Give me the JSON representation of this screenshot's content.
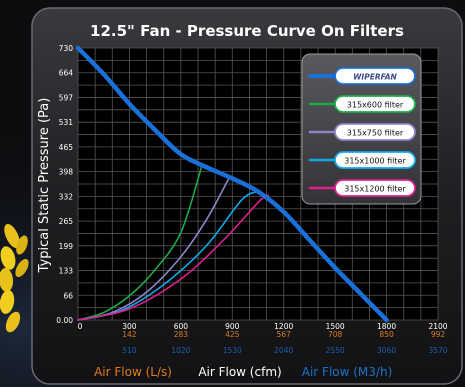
{
  "chart_data": {
    "type": "line",
    "title": "12.5\" Fan - Pressure Curve On Filters",
    "ylabel": "Typical Static Pressure  (Pa)",
    "xlabels": [
      {
        "text": "Air Flow (L/s)",
        "color": "#e07a1a"
      },
      {
        "text": "Air Flow (cfm)",
        "color": "#ffffff"
      },
      {
        "text": "Air Flow (M3/h)",
        "color": "#1a73c8"
      }
    ],
    "x_unit": "cfm",
    "xlim": [
      0,
      2100
    ],
    "ylim": [
      0,
      730
    ],
    "y_ticks": [
      "0.00",
      "66",
      "133",
      "199",
      "265",
      "332",
      "398",
      "465",
      "531",
      "597",
      "664",
      "730"
    ],
    "x_ticks_cfm": [
      "0",
      "300",
      "600",
      "900",
      "1200",
      "1500",
      "1800",
      "2100"
    ],
    "x_ticks_ls": [
      "142",
      "283",
      "425",
      "567",
      "708",
      "850",
      "992"
    ],
    "x_ticks_m3h": [
      "510",
      "1020",
      "1530",
      "2040",
      "2550",
      "3060",
      "3570"
    ],
    "grid": true,
    "legend_position": "top-right",
    "series": [
      {
        "name": "WIPERFAN",
        "color": "#1a6fd8",
        "points": [
          [
            0,
            730
          ],
          [
            150,
            660
          ],
          [
            300,
            580
          ],
          [
            450,
            510
          ],
          [
            600,
            445
          ],
          [
            750,
            410
          ],
          [
            900,
            380
          ],
          [
            1050,
            345
          ],
          [
            1200,
            290
          ],
          [
            1350,
            215
          ],
          [
            1500,
            140
          ],
          [
            1650,
            70
          ],
          [
            1800,
            0
          ]
        ]
      },
      {
        "name": "315x600 filter",
        "color": "#1faa4a",
        "points": [
          [
            0,
            0
          ],
          [
            150,
            20
          ],
          [
            300,
            65
          ],
          [
            450,
            135
          ],
          [
            600,
            235
          ],
          [
            720,
            410
          ]
        ]
      },
      {
        "name": "315x750 filter",
        "color": "#8f86c9",
        "points": [
          [
            0,
            0
          ],
          [
            200,
            20
          ],
          [
            400,
            75
          ],
          [
            600,
            170
          ],
          [
            750,
            270
          ],
          [
            880,
            380
          ]
        ]
      },
      {
        "name": "315x1000 filter",
        "color": "#12a9ea",
        "points": [
          [
            0,
            0
          ],
          [
            250,
            25
          ],
          [
            500,
            95
          ],
          [
            750,
            200
          ],
          [
            950,
            320
          ],
          [
            1040,
            345
          ]
        ]
      },
      {
        "name": "315x1200 filter",
        "color": "#e01f8e",
        "points": [
          [
            0,
            0
          ],
          [
            300,
            30
          ],
          [
            600,
            110
          ],
          [
            850,
            215
          ],
          [
            1060,
            320
          ],
          [
            1110,
            335
          ]
        ]
      }
    ]
  }
}
